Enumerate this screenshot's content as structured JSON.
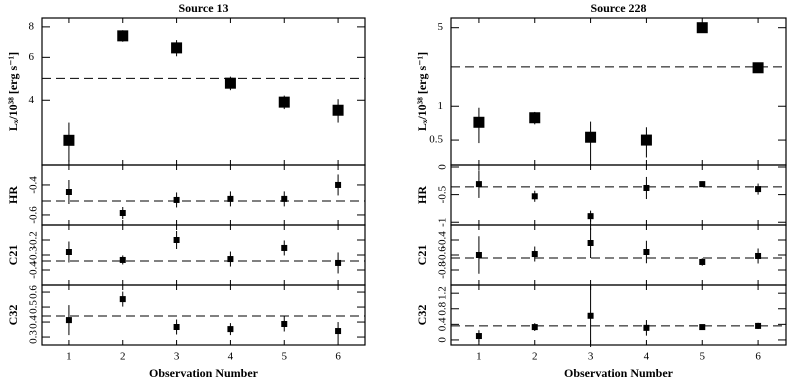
{
  "chart_data": [
    {
      "type": "scatter",
      "title": "Source 13",
      "ylabel": "Lₓ/10³⁸ [erg s⁻¹]",
      "log": true,
      "x": [
        1,
        2,
        3,
        4,
        5,
        6
      ],
      "values": [
        2.74,
        7.35,
        6.56,
        4.7,
        3.93,
        3.64
      ],
      "errors": [
        0.5,
        0.4,
        0.5,
        0.3,
        0.25,
        0.4
      ],
      "hline": 4.92,
      "xlim": [
        0.5,
        6.5
      ],
      "xticks": [
        1,
        2,
        3,
        4,
        5,
        6
      ],
      "ylim": [
        2.17,
        8.7
      ],
      "yticks": [
        4,
        6,
        8
      ]
    },
    {
      "type": "scatter",
      "ylabel": "HR",
      "x": [
        1,
        2,
        3,
        4,
        5,
        6
      ],
      "values": [
        -0.447,
        -0.587,
        -0.5,
        -0.493,
        -0.493,
        -0.4
      ],
      "errors": [
        0.08,
        0.04,
        0.05,
        0.05,
        0.05,
        0.07
      ],
      "hline": -0.507,
      "xlim": [
        0.5,
        6.5
      ],
      "xticks": [
        1,
        2,
        3,
        4,
        5,
        6
      ],
      "ylim": [
        -0.667,
        -0.267
      ],
      "yticks": [
        -0.6,
        -0.4
      ]
    },
    {
      "type": "scatter",
      "ylabel": "C21",
      "x": [
        1,
        2,
        3,
        4,
        5,
        6
      ],
      "values": [
        -0.28,
        -0.333,
        -0.2,
        -0.327,
        -0.253,
        -0.353
      ],
      "errors": [
        0.07,
        0.03,
        0.06,
        0.05,
        0.05,
        0.07
      ],
      "hline": -0.34,
      "xlim": [
        0.5,
        6.5
      ],
      "xticks": [
        1,
        2,
        3,
        4,
        5,
        6
      ],
      "ylim": [
        -0.5,
        -0.1
      ],
      "yticks": [
        -0.4,
        -0.3,
        -0.2
      ]
    },
    {
      "type": "scatter",
      "ylabel": "C32",
      "xlabel": "Observation Number",
      "x": [
        1,
        2,
        3,
        4,
        5,
        6
      ],
      "values": [
        0.413,
        0.553,
        0.367,
        0.353,
        0.387,
        0.34
      ],
      "errors": [
        0.1,
        0.05,
        0.05,
        0.04,
        0.05,
        0.06
      ],
      "hline": 0.44,
      "xlim": [
        0.5,
        6.5
      ],
      "xticks": [
        1,
        2,
        3,
        4,
        5,
        6
      ],
      "ylim": [
        0.247,
        0.647
      ],
      "yticks": [
        0.3,
        0.4,
        0.5,
        0.6
      ]
    },
    {
      "type": "scatter",
      "title": "Source 228",
      "ylabel": "Lₓ/10³⁸ [erg s⁻¹]",
      "log": true,
      "x": [
        1,
        2,
        3,
        4,
        5,
        6
      ],
      "values": [
        0.72,
        0.79,
        0.53,
        0.5,
        5.0,
        2.2
      ],
      "errors": [
        0.25,
        0.1,
        0.2,
        0.15,
        0.3,
        0.2
      ],
      "hline": 2.24,
      "xlim": [
        0.5,
        6.5
      ],
      "xticks": [
        1,
        2,
        3,
        4,
        5,
        6
      ],
      "ylim": [
        0.3,
        6.1
      ],
      "yticks": [
        0.5,
        1,
        5
      ]
    },
    {
      "type": "scatter",
      "ylabel": "HR",
      "x": [
        1,
        2,
        3,
        4,
        5,
        6
      ],
      "values": [
        -0.31,
        -0.53,
        -0.89,
        -0.38,
        -0.31,
        -0.4
      ],
      "errors": [
        0.25,
        0.1,
        0.1,
        0.2,
        0.05,
        0.1
      ],
      "hline": -0.36,
      "xlim": [
        0.5,
        6.5
      ],
      "xticks": [
        1,
        2,
        3,
        4,
        5,
        6
      ],
      "ylim": [
        -1.05,
        0.036
      ],
      "yticks": [
        -1,
        -0.5,
        0
      ]
    },
    {
      "type": "scatter",
      "ylabel": "C21",
      "x": [
        1,
        2,
        3,
        4,
        5,
        6
      ],
      "values": [
        -0.6,
        -0.587,
        -0.44,
        -0.56,
        -0.693,
        -0.613
      ],
      "errors": [
        0.25,
        0.1,
        0.2,
        0.15,
        0.05,
        0.1
      ],
      "hline": -0.64,
      "xlim": [
        0.5,
        6.5
      ],
      "xticks": [
        1,
        2,
        3,
        4,
        5,
        6
      ],
      "ylim": [
        -1.0,
        -0.2
      ],
      "yticks": [
        -0.8,
        -0.6,
        -0.4
      ]
    },
    {
      "type": "scatter",
      "ylabel": "C32",
      "xlabel": "Observation Number",
      "x": [
        1,
        2,
        3,
        4,
        5,
        6
      ],
      "values": [
        0.1,
        0.33,
        0.62,
        0.31,
        0.33,
        0.36
      ],
      "errors": [
        0.15,
        0.1,
        0.8,
        0.2,
        0.05,
        0.08
      ],
      "hline": 0.36,
      "xlim": [
        0.5,
        6.5
      ],
      "xticks": [
        1,
        2,
        3,
        4,
        5,
        6
      ],
      "ylim": [
        -0.13,
        1.41
      ],
      "yticks": [
        0,
        0.4,
        0.8,
        1.2
      ]
    }
  ]
}
